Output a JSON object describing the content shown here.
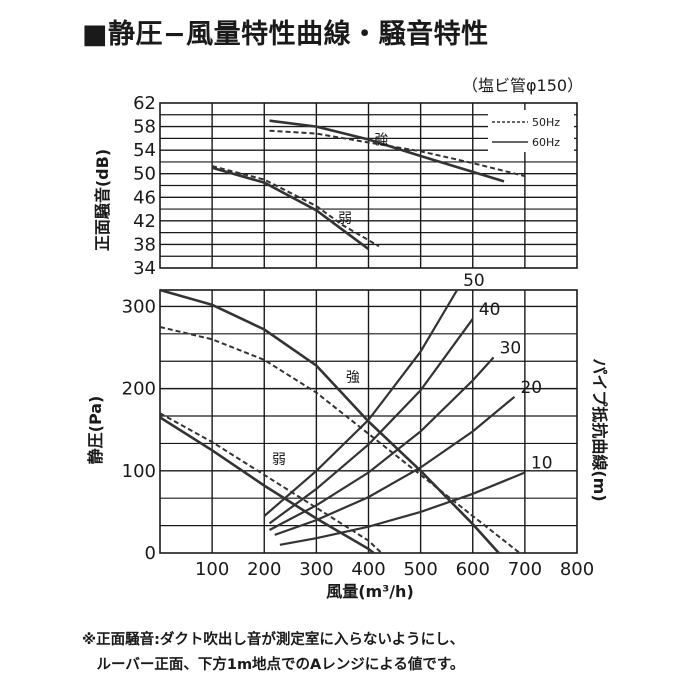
{
  "header": {
    "title": "■静圧−風量特性曲線・騒音特性",
    "subtitle": "（塩ビ管φ150）"
  },
  "footnote": {
    "line1": "※正面騒音:ダクト吹出し音が測定室に入らないようにし、",
    "line2": "　ルーバー正面、下方1m地点でのAレンジによる値です。"
  },
  "colors": {
    "curve": "#333333",
    "grid": "#1a1a1a"
  },
  "chart_data": [
    {
      "type": "line",
      "title": "",
      "xlabel": "風量(m³/h)",
      "ylabel": "正面騒音(dB)",
      "xlim": [
        0,
        800
      ],
      "ylim": [
        34,
        62
      ],
      "xticks": [
        100,
        200,
        300,
        400,
        500,
        600,
        700,
        800
      ],
      "yticks": [
        34,
        38,
        42,
        46,
        50,
        54,
        58,
        62
      ],
      "grid": true,
      "legend": {
        "position": "top-right",
        "entries": [
          {
            "label": "50Hz",
            "style": "dashed"
          },
          {
            "label": "60Hz",
            "style": "solid"
          }
        ]
      },
      "annotations": [
        {
          "text": "強",
          "x": 425,
          "y": 55
        },
        {
          "text": "弱",
          "x": 355,
          "y": 41.6
        }
      ],
      "series": [
        {
          "name": "50Hz",
          "mode": "強",
          "style": "dashed",
          "x": [
            210,
            300,
            400,
            500,
            600,
            700
          ],
          "y": [
            57.3,
            56.8,
            55.3,
            53.8,
            51.8,
            49.6
          ]
        },
        {
          "name": "60Hz",
          "mode": "強",
          "style": "solid",
          "x": [
            210,
            300,
            400,
            500,
            600,
            660
          ],
          "y": [
            59,
            58,
            55.8,
            53,
            50.3,
            48.7
          ]
        },
        {
          "name": "50Hz",
          "mode": "弱",
          "style": "dashed",
          "x": [
            100,
            200,
            300,
            350,
            420
          ],
          "y": [
            51.3,
            49,
            44.5,
            41.3,
            37.7
          ]
        },
        {
          "name": "60Hz",
          "mode": "弱",
          "style": "solid",
          "x": [
            100,
            200,
            300,
            350,
            400
          ],
          "y": [
            51,
            48.5,
            43.8,
            40.5,
            37.2
          ]
        }
      ]
    },
    {
      "type": "line",
      "title": "",
      "xlabel": "風量(m³/h)",
      "ylabel": "静圧(Pa)",
      "y2label": "パイプ抵抗曲線(m)",
      "xlim": [
        0,
        800
      ],
      "ylim": [
        0,
        320
      ],
      "xticks": [
        100,
        200,
        300,
        400,
        500,
        600,
        700,
        800
      ],
      "yticks": [
        0,
        100,
        200,
        300
      ],
      "grid": true,
      "annotations": [
        {
          "text": "強",
          "x": 370,
          "y": 208
        },
        {
          "text": "弱",
          "x": 228,
          "y": 108
        }
      ],
      "series": [
        {
          "name": "50Hz",
          "mode": "強",
          "style": "dashed",
          "x": [
            0,
            100,
            200,
            300,
            400,
            500,
            600,
            690
          ],
          "y": [
            275,
            260,
            235,
            195,
            145,
            95,
            45,
            0
          ]
        },
        {
          "name": "60Hz",
          "mode": "強",
          "style": "solid",
          "x": [
            0,
            100,
            200,
            300,
            400,
            500,
            600,
            650
          ],
          "y": [
            320,
            302,
            272,
            228,
            160,
            100,
            35,
            0
          ]
        },
        {
          "name": "50Hz",
          "mode": "弱",
          "style": "dashed",
          "x": [
            0,
            100,
            200,
            300,
            400,
            425
          ],
          "y": [
            170,
            135,
            95,
            55,
            15,
            0
          ]
        },
        {
          "name": "60Hz",
          "mode": "弱",
          "style": "solid",
          "x": [
            0,
            100,
            200,
            300,
            400,
            410
          ],
          "y": [
            165,
            125,
            82,
            42,
            5,
            0
          ]
        }
      ],
      "pipe_resistance": [
        {
          "label": "50",
          "x": [
            200,
            300,
            400,
            500,
            570
          ],
          "y": [
            45,
            100,
            162,
            245,
            320
          ]
        },
        {
          "label": "40",
          "x": [
            210,
            300,
            400,
            500,
            600
          ],
          "y": [
            36,
            78,
            132,
            198,
            285
          ]
        },
        {
          "label": "30",
          "x": [
            210,
            300,
            400,
            500,
            600,
            640
          ],
          "y": [
            28,
            58,
            98,
            148,
            210,
            238
          ]
        },
        {
          "label": "20",
          "x": [
            220,
            300,
            400,
            500,
            600,
            680
          ],
          "y": [
            22,
            40,
            68,
            104,
            148,
            190
          ]
        },
        {
          "label": "10",
          "x": [
            230,
            300,
            400,
            500,
            600,
            700
          ],
          "y": [
            10,
            18,
            32,
            50,
            72,
            98
          ]
        }
      ]
    }
  ]
}
